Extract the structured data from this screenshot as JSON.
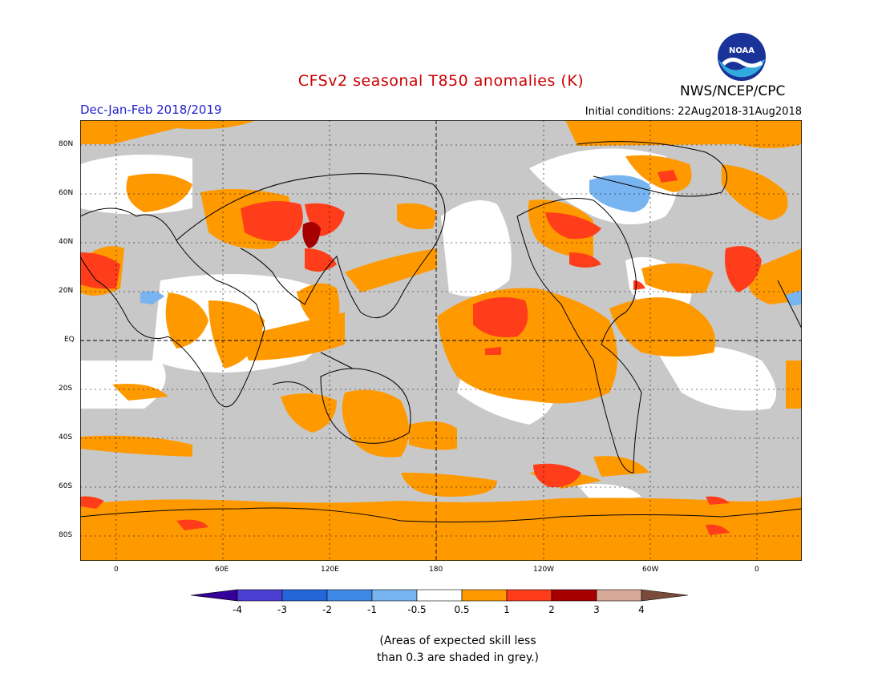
{
  "header": {
    "title": "CFSv2 seasonal T850 anomalies (K)",
    "agency": "NWS/NCEP/CPC",
    "logo_text": "NOAA",
    "season": "Dec-Jan-Feb 2018/2019",
    "initial_conditions": "Initial conditions: 22Aug2018-31Aug2018"
  },
  "map": {
    "lat_labels": [
      "80N",
      "60N",
      "40N",
      "20N",
      "EQ",
      "20S",
      "40S",
      "60S",
      "80S"
    ],
    "lon_labels": [
      "0",
      "60E",
      "120E",
      "180",
      "120W",
      "60W",
      "0"
    ],
    "colors": {
      "skill_grey": "#c8c8c8",
      "near_zero": "#ffffff",
      "warm_1": "#ff9900",
      "warm_2": "#ff3d1a",
      "warm_3": "#a60000",
      "cool_1": "#78b4f0",
      "coast": "#000000"
    }
  },
  "colorbar": {
    "labels": [
      "-4",
      "-3",
      "-2",
      "-1",
      "-0.5",
      "0.5",
      "1",
      "2",
      "3",
      "4"
    ],
    "colors": [
      "#330099",
      "#4a3fd0",
      "#2266d9",
      "#3c8ae6",
      "#78b4f0",
      "#ffffff",
      "#ff9900",
      "#ff3d1a",
      "#a60000",
      "#d8a898",
      "#7a4a3a"
    ]
  },
  "note": {
    "line1": "(Areas of expected skill less",
    "line2": "than 0.3 are shaded in grey.)"
  }
}
